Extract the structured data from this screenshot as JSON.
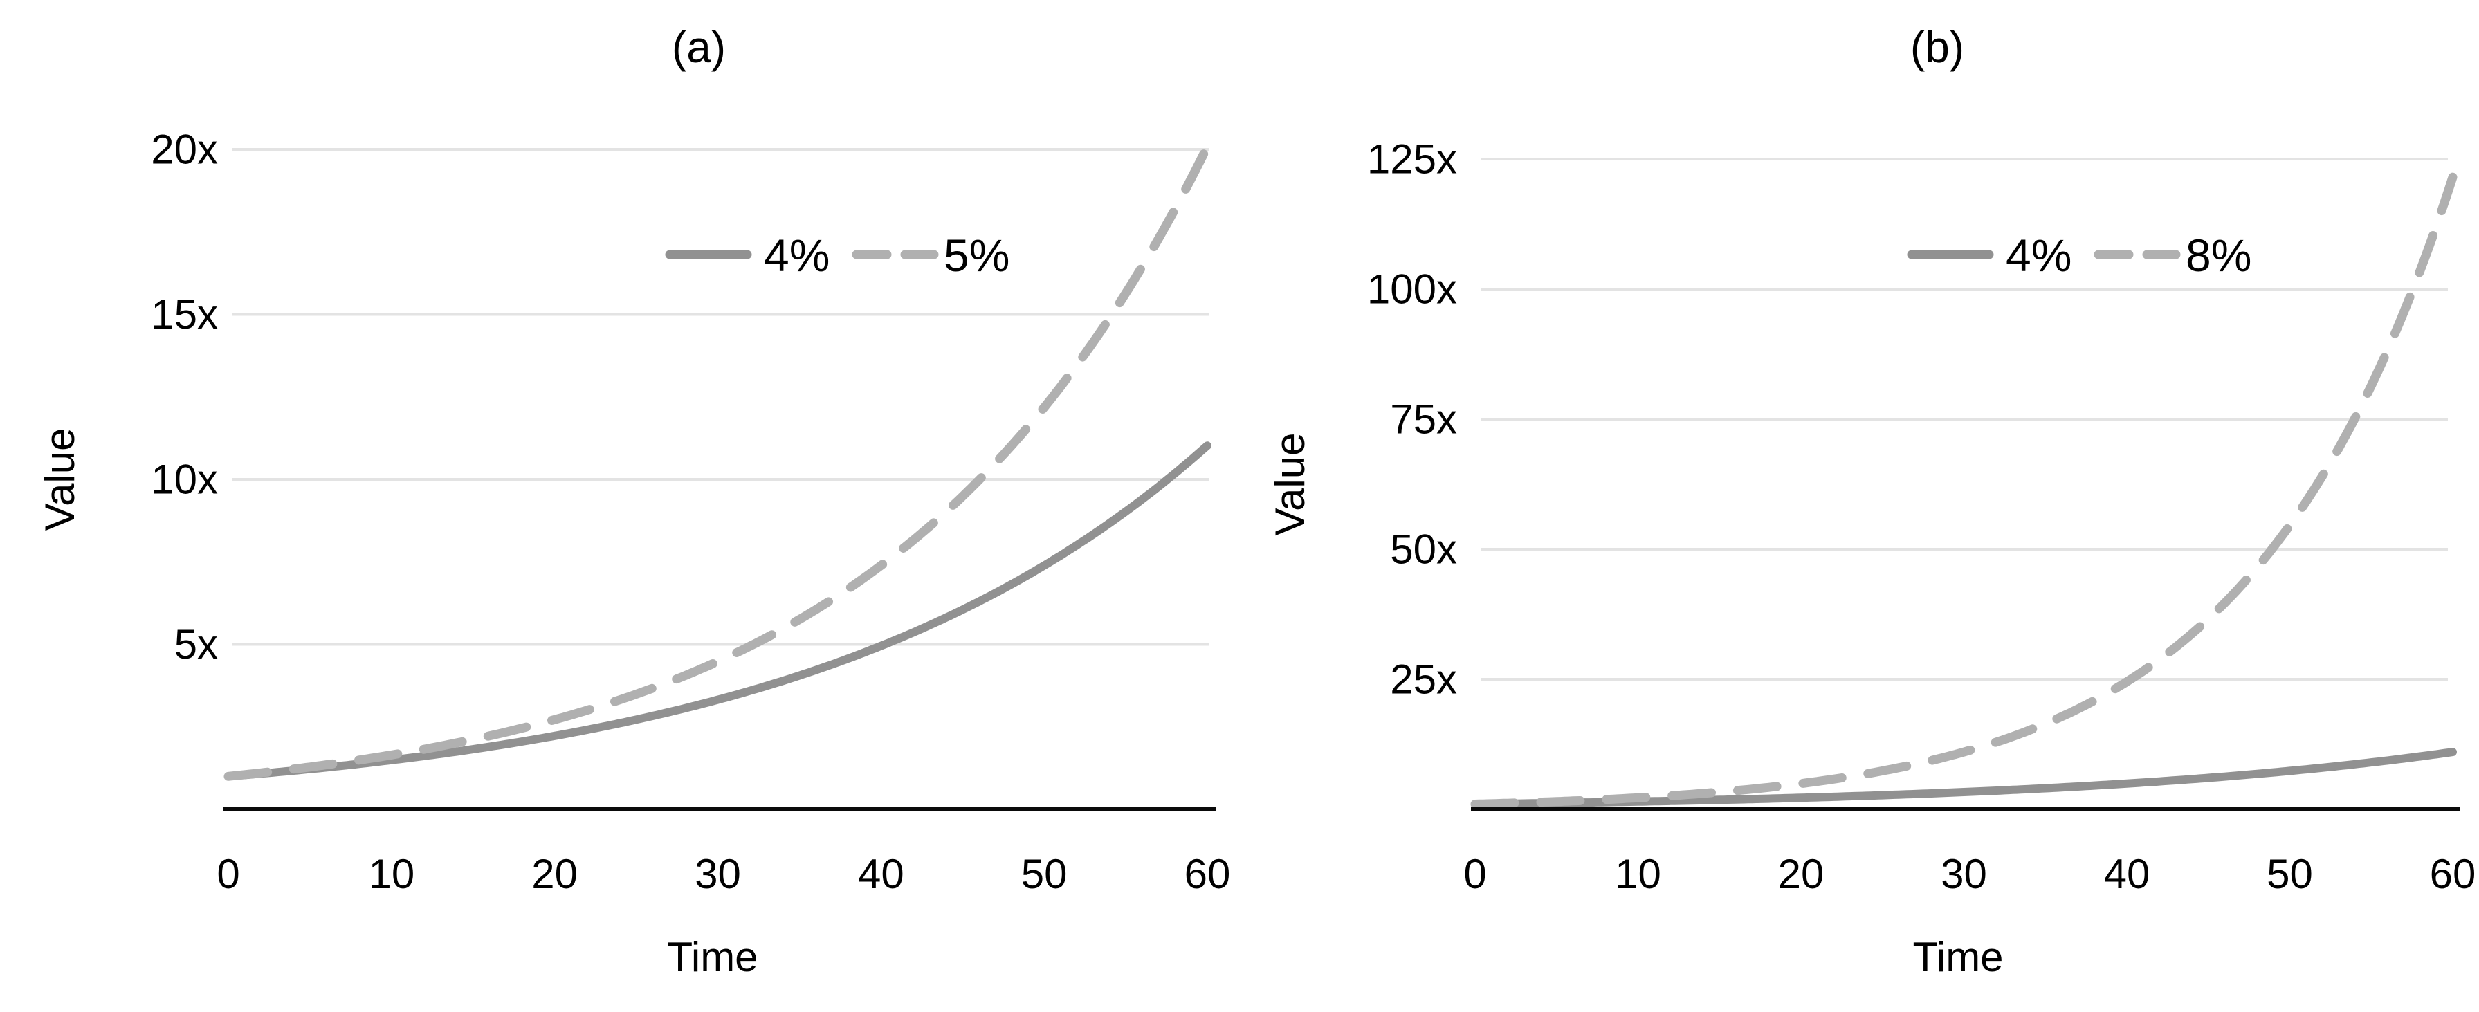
{
  "figure": {
    "background": "#ffffff",
    "text_color": "#000000",
    "axis_color": "#0a0a0a",
    "gridline_color": "#e3e3e3"
  },
  "chart_data": [
    {
      "type": "line",
      "panel_id": "a",
      "title": "(a)",
      "xlabel": "Time",
      "ylabel": "Value",
      "xlim": [
        0,
        60
      ],
      "ylim": [
        0,
        20.5
      ],
      "grid": "horizontal-only",
      "legend_position": "inside-top-right",
      "x_tick_values": [
        0,
        10,
        20,
        30,
        40,
        50,
        60
      ],
      "x_tick_labels": [
        "0",
        "10",
        "20",
        "30",
        "40",
        "50",
        "60"
      ],
      "y_tick_values": [
        5,
        10,
        15,
        20
      ],
      "y_tick_labels": [
        "5x",
        "10x",
        "15x",
        "20x"
      ],
      "x": [
        0,
        10,
        20,
        30,
        40,
        50,
        60
      ],
      "series": [
        {
          "name": "4%",
          "line_style": "solid",
          "color": "#919191",
          "growth_rate": 0.04,
          "model": "value = e^(rate*t)",
          "values": [
            1.0,
            1.49,
            2.23,
            3.32,
            4.95,
            7.39,
            11.02
          ]
        },
        {
          "name": "5%",
          "line_style": "dashed",
          "color": "#b0b0b0",
          "growth_rate": 0.05,
          "model": "value = e^(rate*t)",
          "values": [
            1.0,
            1.65,
            2.72,
            4.48,
            7.39,
            12.18,
            20.09
          ]
        }
      ]
    },
    {
      "type": "line",
      "panel_id": "b",
      "title": "(b)",
      "xlabel": "Time",
      "ylabel": "Value",
      "xlim": [
        0,
        60
      ],
      "ylim": [
        0,
        127
      ],
      "grid": "horizontal-only",
      "legend_position": "inside-top-right",
      "x_tick_values": [
        0,
        10,
        20,
        30,
        40,
        50,
        60
      ],
      "x_tick_labels": [
        "0",
        "10",
        "20",
        "30",
        "40",
        "50",
        "60"
      ],
      "y_tick_values": [
        25,
        50,
        75,
        100,
        125
      ],
      "y_tick_labels": [
        "25x",
        "50x",
        "75x",
        "100x",
        "125x"
      ],
      "x": [
        0,
        10,
        20,
        30,
        40,
        50,
        60
      ],
      "series": [
        {
          "name": "4%",
          "line_style": "solid",
          "color": "#919191",
          "growth_rate": 0.04,
          "model": "value = e^(rate*t)",
          "values": [
            1.0,
            1.49,
            2.23,
            3.32,
            4.95,
            7.39,
            11.02
          ]
        },
        {
          "name": "8%",
          "line_style": "dashed",
          "color": "#b0b0b0",
          "growth_rate": 0.08,
          "model": "value = e^(rate*t)",
          "values": [
            1.0,
            2.23,
            4.95,
            11.02,
            24.53,
            54.6,
            121.51
          ]
        }
      ]
    }
  ]
}
